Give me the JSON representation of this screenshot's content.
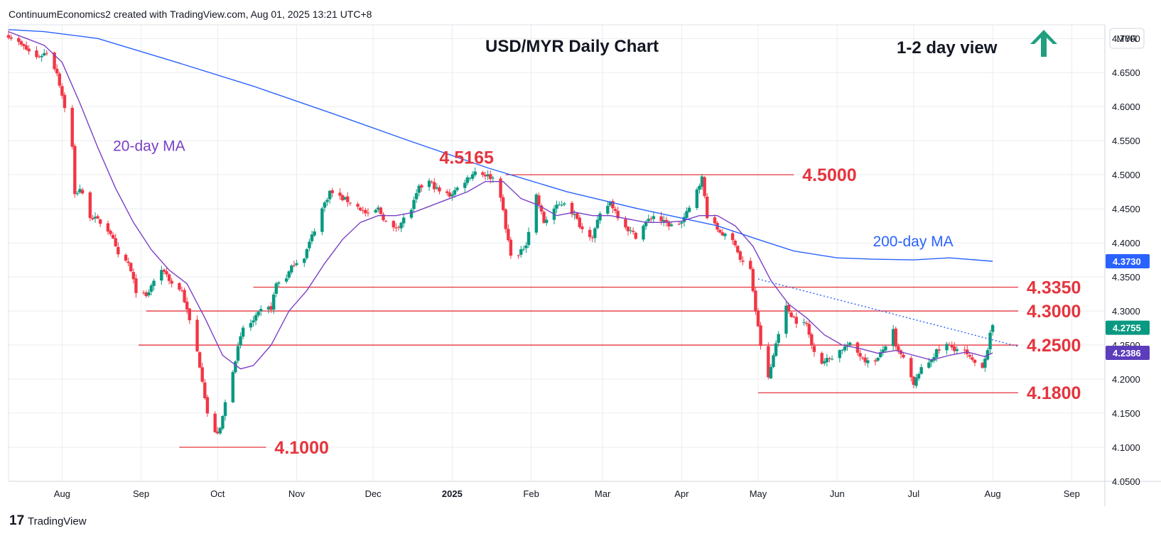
{
  "header": {
    "credit": "ContinuumEconomics2 created with TradingView.com, Aug 01, 2025 13:21 UTC+8"
  },
  "footer": {
    "brand": "TradingView",
    "logo_letters": "17"
  },
  "colors": {
    "up": "#089981",
    "down": "#f23645",
    "ma20": "#7b3fc4",
    "ma200": "#2962ff",
    "level": "#e5343d",
    "arrow": "#1f9f7f",
    "grid": "#e9ecf1",
    "badge": "#2962ff",
    "badge_ma20": "#5c3dbb",
    "badge_last": "#089981"
  },
  "chart_data": {
    "type": "candlestick",
    "title": "USD/MYR Daily Chart",
    "view_text": "1-2 day view",
    "view_direction": "up",
    "view_icon": "arrow-up-icon",
    "currency_label": "MYR",
    "y_axis": {
      "ylim": [
        4.05,
        4.72
      ],
      "ticks": [
        "4.7000",
        "4.6500",
        "4.6000",
        "4.5500",
        "4.5000",
        "4.4500",
        "4.4000",
        "4.3500",
        "4.3000",
        "4.2500",
        "4.2000",
        "4.1500",
        "4.1000",
        "4.0500"
      ]
    },
    "x_axis": {
      "start": "2024-07-11",
      "end": "2025-09-14",
      "ticks": [
        {
          "label": "Aug",
          "date": "2024-08-01",
          "bold": false
        },
        {
          "label": "Sep",
          "date": "2024-09-01",
          "bold": false
        },
        {
          "label": "Oct",
          "date": "2024-10-01",
          "bold": false
        },
        {
          "label": "Nov",
          "date": "2024-11-01",
          "bold": false
        },
        {
          "label": "Dec",
          "date": "2024-12-01",
          "bold": false
        },
        {
          "label": "2025",
          "date": "2025-01-01",
          "bold": true
        },
        {
          "label": "Feb",
          "date": "2025-02-01",
          "bold": false
        },
        {
          "label": "Mar",
          "date": "2025-03-01",
          "bold": false
        },
        {
          "label": "Apr",
          "date": "2025-04-01",
          "bold": false
        },
        {
          "label": "May",
          "date": "2025-05-01",
          "bold": false
        },
        {
          "label": "Jun",
          "date": "2025-06-01",
          "bold": false
        },
        {
          "label": "Jul",
          "date": "2025-07-01",
          "bold": false
        },
        {
          "label": "Aug",
          "date": "2025-08-01",
          "bold": false
        },
        {
          "label": "Sep",
          "date": "2025-09-01",
          "bold": false
        }
      ]
    },
    "grid": true,
    "close_path": [
      [
        "2024-07-11",
        4.705
      ],
      [
        "2024-07-16",
        4.69
      ],
      [
        "2024-07-22",
        4.672
      ],
      [
        "2024-07-26",
        4.68
      ],
      [
        "2024-07-30",
        4.65
      ],
      [
        "2024-08-02",
        4.6
      ],
      [
        "2024-08-05",
        4.54
      ],
      [
        "2024-08-06",
        4.47
      ],
      [
        "2024-08-08",
        4.48
      ],
      [
        "2024-08-12",
        4.44
      ],
      [
        "2024-08-16",
        4.43
      ],
      [
        "2024-08-20",
        4.415
      ],
      [
        "2024-08-23",
        4.38
      ],
      [
        "2024-08-27",
        4.37
      ],
      [
        "2024-08-30",
        4.33
      ],
      [
        "2024-09-03",
        4.32
      ],
      [
        "2024-09-06",
        4.345
      ],
      [
        "2024-09-10",
        4.36
      ],
      [
        "2024-09-13",
        4.34
      ],
      [
        "2024-09-17",
        4.33
      ],
      [
        "2024-09-19",
        4.3
      ],
      [
        "2024-09-23",
        4.24
      ],
      [
        "2024-09-25",
        4.2
      ],
      [
        "2024-09-27",
        4.15
      ],
      [
        "2024-09-30",
        4.12
      ],
      [
        "2024-10-02",
        4.125
      ],
      [
        "2024-10-04",
        4.165
      ],
      [
        "2024-10-08",
        4.23
      ],
      [
        "2024-10-11",
        4.275
      ],
      [
        "2024-10-15",
        4.285
      ],
      [
        "2024-10-18",
        4.3
      ],
      [
        "2024-10-22",
        4.305
      ],
      [
        "2024-10-24",
        4.34
      ],
      [
        "2024-10-28",
        4.35
      ],
      [
        "2024-10-31",
        4.37
      ],
      [
        "2024-11-04",
        4.38
      ],
      [
        "2024-11-07",
        4.41
      ],
      [
        "2024-11-11",
        4.45
      ],
      [
        "2024-11-14",
        4.475
      ],
      [
        "2024-11-19",
        4.465
      ],
      [
        "2024-11-22",
        4.46
      ],
      [
        "2024-11-26",
        4.45
      ],
      [
        "2024-11-29",
        4.44
      ],
      [
        "2024-12-03",
        4.45
      ],
      [
        "2024-12-06",
        4.43
      ],
      [
        "2024-12-09",
        4.42
      ],
      [
        "2024-12-12",
        4.43
      ],
      [
        "2024-12-16",
        4.45
      ],
      [
        "2024-12-19",
        4.48
      ],
      [
        "2024-12-23",
        4.49
      ],
      [
        "2024-12-27",
        4.475
      ],
      [
        "2024-12-31",
        4.47
      ],
      [
        "2025-01-03",
        4.48
      ],
      [
        "2025-01-07",
        4.495
      ],
      [
        "2025-01-10",
        4.505
      ],
      [
        "2025-01-14",
        4.5
      ],
      [
        "2025-01-17",
        4.495
      ],
      [
        "2025-01-20",
        4.47
      ],
      [
        "2025-01-22",
        4.42
      ],
      [
        "2025-01-24",
        4.385
      ],
      [
        "2025-01-27",
        4.38
      ],
      [
        "2025-01-30",
        4.4
      ],
      [
        "2025-02-03",
        4.47
      ],
      [
        "2025-02-06",
        4.43
      ],
      [
        "2025-02-10",
        4.45
      ],
      [
        "2025-02-14",
        4.46
      ],
      [
        "2025-02-18",
        4.44
      ],
      [
        "2025-02-21",
        4.42
      ],
      [
        "2025-02-25",
        4.41
      ],
      [
        "2025-02-28",
        4.44
      ],
      [
        "2025-03-04",
        4.46
      ],
      [
        "2025-03-07",
        4.44
      ],
      [
        "2025-03-11",
        4.42
      ],
      [
        "2025-03-14",
        4.41
      ],
      [
        "2025-03-18",
        4.43
      ],
      [
        "2025-03-21",
        4.44
      ],
      [
        "2025-03-25",
        4.43
      ],
      [
        "2025-03-28",
        4.425
      ],
      [
        "2025-04-01",
        4.43
      ],
      [
        "2025-04-04",
        4.45
      ],
      [
        "2025-04-07",
        4.48
      ],
      [
        "2025-04-09",
        4.495
      ],
      [
        "2025-04-11",
        4.44
      ],
      [
        "2025-04-15",
        4.42
      ],
      [
        "2025-04-18",
        4.41
      ],
      [
        "2025-04-22",
        4.4
      ],
      [
        "2025-04-24",
        4.375
      ],
      [
        "2025-04-28",
        4.36
      ],
      [
        "2025-04-30",
        4.3
      ],
      [
        "2025-05-02",
        4.25
      ],
      [
        "2025-05-05",
        4.2
      ],
      [
        "2025-05-07",
        4.235
      ],
      [
        "2025-05-09",
        4.27
      ],
      [
        "2025-05-12",
        4.305
      ],
      [
        "2025-05-14",
        4.295
      ],
      [
        "2025-05-16",
        4.285
      ],
      [
        "2025-05-20",
        4.28
      ],
      [
        "2025-05-22",
        4.25
      ],
      [
        "2025-05-26",
        4.225
      ],
      [
        "2025-05-29",
        4.23
      ],
      [
        "2025-06-03",
        4.245
      ],
      [
        "2025-06-06",
        4.25
      ],
      [
        "2025-06-10",
        4.235
      ],
      [
        "2025-06-13",
        4.225
      ],
      [
        "2025-06-17",
        4.23
      ],
      [
        "2025-06-20",
        4.25
      ],
      [
        "2025-06-23",
        4.27
      ],
      [
        "2025-06-24",
        4.245
      ],
      [
        "2025-06-27",
        4.23
      ],
      [
        "2025-07-01",
        4.19
      ],
      [
        "2025-07-03",
        4.21
      ],
      [
        "2025-07-07",
        4.225
      ],
      [
        "2025-07-10",
        4.24
      ],
      [
        "2025-07-14",
        4.25
      ],
      [
        "2025-07-17",
        4.245
      ],
      [
        "2025-07-21",
        4.24
      ],
      [
        "2025-07-24",
        4.225
      ],
      [
        "2025-07-28",
        4.22
      ],
      [
        "2025-07-30",
        4.245
      ],
      [
        "2025-07-31",
        4.265
      ],
      [
        "2025-08-01",
        4.2755
      ]
    ],
    "ma20_path": [
      [
        "2024-07-11",
        4.71
      ],
      [
        "2024-07-18",
        4.7
      ],
      [
        "2024-07-25",
        4.69
      ],
      [
        "2024-08-01",
        4.665
      ],
      [
        "2024-08-08",
        4.605
      ],
      [
        "2024-08-15",
        4.54
      ],
      [
        "2024-08-22",
        4.48
      ],
      [
        "2024-08-29",
        4.43
      ],
      [
        "2024-09-05",
        4.39
      ],
      [
        "2024-09-12",
        4.36
      ],
      [
        "2024-09-19",
        4.34
      ],
      [
        "2024-09-26",
        4.29
      ],
      [
        "2024-10-03",
        4.235
      ],
      [
        "2024-10-10",
        4.215
      ],
      [
        "2024-10-15",
        4.22
      ],
      [
        "2024-10-22",
        4.25
      ],
      [
        "2024-10-29",
        4.3
      ],
      [
        "2024-11-05",
        4.33
      ],
      [
        "2024-11-12",
        4.37
      ],
      [
        "2024-11-19",
        4.405
      ],
      [
        "2024-11-26",
        4.43
      ],
      [
        "2024-12-03",
        4.44
      ],
      [
        "2024-12-10",
        4.44
      ],
      [
        "2024-12-17",
        4.445
      ],
      [
        "2024-12-24",
        4.455
      ],
      [
        "2024-12-31",
        4.465
      ],
      [
        "2025-01-07",
        4.475
      ],
      [
        "2025-01-14",
        4.49
      ],
      [
        "2025-01-21",
        4.49
      ],
      [
        "2025-01-28",
        4.465
      ],
      [
        "2025-02-04",
        4.455
      ],
      [
        "2025-02-11",
        4.44
      ],
      [
        "2025-02-18",
        4.445
      ],
      [
        "2025-02-25",
        4.44
      ],
      [
        "2025-03-04",
        4.44
      ],
      [
        "2025-03-11",
        4.435
      ],
      [
        "2025-03-18",
        4.43
      ],
      [
        "2025-03-25",
        4.43
      ],
      [
        "2025-04-01",
        4.432
      ],
      [
        "2025-04-08",
        4.44
      ],
      [
        "2025-04-15",
        4.44
      ],
      [
        "2025-04-22",
        4.425
      ],
      [
        "2025-04-29",
        4.395
      ],
      [
        "2025-05-06",
        4.345
      ],
      [
        "2025-05-13",
        4.31
      ],
      [
        "2025-05-20",
        4.29
      ],
      [
        "2025-05-27",
        4.265
      ],
      [
        "2025-06-03",
        4.25
      ],
      [
        "2025-06-10",
        4.245
      ],
      [
        "2025-06-17",
        4.238
      ],
      [
        "2025-06-24",
        4.242
      ],
      [
        "2025-07-01",
        4.235
      ],
      [
        "2025-07-08",
        4.228
      ],
      [
        "2025-07-15",
        4.235
      ],
      [
        "2025-07-22",
        4.24
      ],
      [
        "2025-07-29",
        4.233
      ],
      [
        "2025-08-01",
        4.2386
      ]
    ],
    "ma200_path": [
      [
        "2024-07-11",
        4.713
      ],
      [
        "2024-07-25",
        4.71
      ],
      [
        "2024-08-15",
        4.7
      ],
      [
        "2024-09-15",
        4.665
      ],
      [
        "2024-10-15",
        4.63
      ],
      [
        "2024-11-15",
        4.59
      ],
      [
        "2024-12-15",
        4.55
      ],
      [
        "2025-01-15",
        4.51
      ],
      [
        "2025-02-15",
        4.475
      ],
      [
        "2025-03-15",
        4.45
      ],
      [
        "2025-04-15",
        4.425
      ],
      [
        "2025-05-01",
        4.405
      ],
      [
        "2025-05-15",
        4.388
      ],
      [
        "2025-06-01",
        4.378
      ],
      [
        "2025-06-15",
        4.376
      ],
      [
        "2025-07-01",
        4.375
      ],
      [
        "2025-07-15",
        4.378
      ],
      [
        "2025-08-01",
        4.373
      ]
    ],
    "trendline": [
      [
        "2025-05-01",
        4.347
      ],
      [
        "2025-08-11",
        4.248
      ]
    ],
    "levels": [
      {
        "label": "4.5000",
        "value": 4.5,
        "from": "2025-01-22",
        "to": "2025-05-15"
      },
      {
        "label": "4.3350",
        "value": 4.335,
        "from": "2024-10-15",
        "to": "2025-08-11"
      },
      {
        "label": "4.3000",
        "value": 4.3,
        "from": "2024-09-03",
        "to": "2025-08-11"
      },
      {
        "label": "4.2500",
        "value": 4.25,
        "from": "2024-08-31",
        "to": "2025-08-11"
      },
      {
        "label": "4.1800",
        "value": 4.18,
        "from": "2025-05-01",
        "to": "2025-08-11"
      },
      {
        "label": "4.1000",
        "value": 4.1,
        "from": "2024-09-16",
        "to": "2024-10-20"
      }
    ],
    "annotations": [
      {
        "text": "4.5165",
        "value": 4.5165,
        "date": "2024-12-27"
      },
      {
        "text": "20-day MA",
        "value": 4.535,
        "date": "2024-08-21"
      },
      {
        "text": "200-day MA",
        "value": 4.395,
        "date": "2025-06-15"
      }
    ],
    "price_badges": [
      {
        "label": "4.3730",
        "value": 4.373,
        "kind": "ma200"
      },
      {
        "label": "4.2755",
        "value": 4.2755,
        "kind": "last"
      },
      {
        "label": "4.2386",
        "value": 4.2386,
        "kind": "ma20"
      }
    ]
  }
}
